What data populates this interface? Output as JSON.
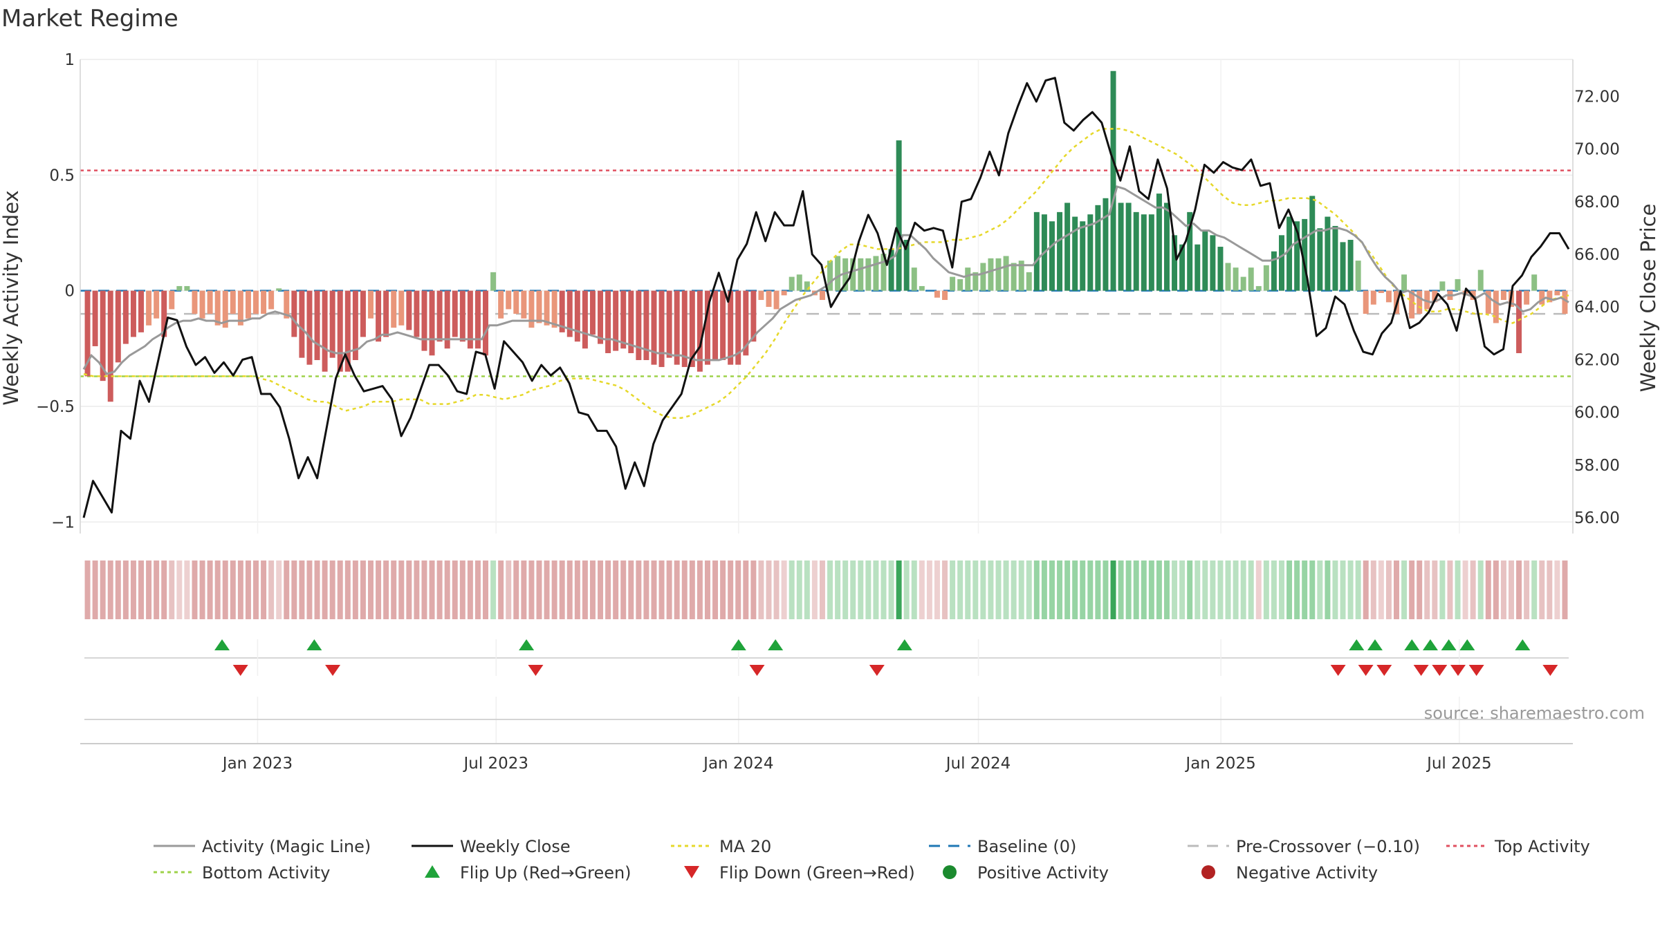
{
  "chart_data": {
    "type": "bar",
    "title": "Market Regime",
    "source": "source: sharemaestro.com",
    "y_left": {
      "label": "Weekly Activity Index",
      "ylim": [
        -1.05,
        1.0
      ],
      "ticks": [
        {
          "v": 1,
          "label": "1"
        },
        {
          "v": 0.5,
          "label": "0.5"
        },
        {
          "v": 0,
          "label": "0"
        },
        {
          "v": -0.5,
          "label": "−0.5"
        },
        {
          "v": -1,
          "label": "−1"
        }
      ]
    },
    "y_right": {
      "label": "Weekly Close Price",
      "ylim": [
        55.4,
        73.4
      ],
      "ticks": [
        "56.00",
        "58.00",
        "60.00",
        "62.00",
        "64.00",
        "66.00",
        "68.00",
        "70.00",
        "72.00"
      ]
    },
    "x_axis": {
      "start": "2022-08-22",
      "end": "2025-09-22",
      "ticks": [
        {
          "date": "2023-01-01",
          "label": "Jan 2023"
        },
        {
          "date": "2023-07-01",
          "label": "Jul 2023"
        },
        {
          "date": "2024-01-01",
          "label": "Jan 2024"
        },
        {
          "date": "2024-07-01",
          "label": "Jul 2024"
        },
        {
          "date": "2025-01-01",
          "label": "Jan 2025"
        },
        {
          "date": "2025-07-01",
          "label": "Jul 2025"
        }
      ]
    },
    "reference_lines": {
      "top_activity": 0.52,
      "bottom_activity": -0.37,
      "baseline": 0,
      "pre_crossover": -0.1
    },
    "colors": {
      "strong_pos": "#2e8b57",
      "weak_pos": "#8cc084",
      "strong_neg": "#cd5c5c",
      "weak_neg": "#e9967a",
      "close": "#111111",
      "magic": "#999999",
      "ma20": "#e6d82a",
      "baseline": "#1f77b4",
      "pre": "#bbbbbb",
      "top": "#e05060",
      "bottom": "#9ed24a",
      "flip_up": "#1fa33a",
      "flip_down": "#d62728",
      "pos_dot": "#1b8a2e",
      "neg_dot": "#b22222"
    },
    "activity": [
      -0.37,
      -0.24,
      -0.39,
      -0.48,
      -0.31,
      -0.23,
      -0.2,
      -0.18,
      -0.15,
      -0.12,
      -0.2,
      -0.08,
      0.02,
      0.02,
      -0.1,
      -0.12,
      -0.1,
      -0.15,
      -0.16,
      -0.1,
      -0.15,
      -0.12,
      -0.1,
      -0.1,
      -0.08,
      0.01,
      -0.12,
      -0.2,
      -0.29,
      -0.32,
      -0.3,
      -0.35,
      -0.29,
      -0.35,
      -0.35,
      -0.3,
      -0.2,
      -0.12,
      -0.22,
      -0.2,
      -0.16,
      -0.15,
      -0.17,
      -0.2,
      -0.26,
      -0.28,
      -0.22,
      -0.25,
      -0.2,
      -0.22,
      -0.25,
      -0.25,
      -0.28,
      0.08,
      -0.12,
      -0.08,
      -0.1,
      -0.12,
      -0.16,
      -0.14,
      -0.15,
      -0.16,
      -0.18,
      -0.2,
      -0.22,
      -0.25,
      -0.19,
      -0.23,
      -0.27,
      -0.26,
      -0.25,
      -0.27,
      -0.3,
      -0.3,
      -0.32,
      -0.33,
      -0.29,
      -0.32,
      -0.33,
      -0.33,
      -0.35,
      -0.32,
      -0.3,
      -0.3,
      -0.32,
      -0.32,
      -0.28,
      -0.22,
      -0.04,
      -0.07,
      -0.08,
      -0.02,
      0.06,
      0.07,
      0.04,
      -0.02,
      -0.04,
      0.13,
      0.15,
      0.14,
      0.14,
      0.14,
      0.14,
      0.15,
      0.16,
      0.18,
      0.65,
      0.22,
      0.1,
      0.02,
      0,
      -0.03,
      -0.04,
      0.06,
      0.05,
      0.1,
      0.08,
      0.12,
      0.14,
      0.14,
      0.15,
      0.12,
      0.13,
      0.08,
      0.34,
      0.33,
      0.3,
      0.34,
      0.38,
      0.32,
      0.3,
      0.33,
      0.37,
      0.4,
      0.95,
      0.38,
      0.38,
      0.34,
      0.33,
      0.33,
      0.42,
      0.38,
      0.24,
      0.2,
      0.34,
      0.2,
      0.26,
      0.24,
      0.19,
      0.12,
      0.1,
      0.06,
      0.1,
      0.02,
      0.11,
      0.17,
      0.24,
      0.32,
      0.3,
      0.31,
      0.41,
      0.27,
      0.32,
      0.28,
      0.21,
      0.22,
      0.13,
      -0.1,
      -0.06,
      -0.01,
      -0.05,
      -0.1,
      0.07,
      -0.12,
      -0.1,
      -0.08,
      -0.05,
      0.04,
      -0.04,
      0.05,
      -0.02,
      -0.04,
      0.09,
      -0.1,
      -0.14,
      -0.04,
      -0.07,
      -0.27,
      -0.06,
      0.07,
      -0.06,
      -0.05,
      -0.02,
      -0.1
    ],
    "magic_line": [
      -0.34,
      -0.28,
      -0.31,
      -0.36,
      -0.35,
      -0.31,
      -0.28,
      -0.26,
      -0.24,
      -0.21,
      -0.19,
      -0.16,
      -0.14,
      -0.13,
      -0.13,
      -0.12,
      -0.13,
      -0.13,
      -0.14,
      -0.13,
      -0.13,
      -0.13,
      -0.12,
      -0.12,
      -0.1,
      -0.09,
      -0.1,
      -0.11,
      -0.15,
      -0.18,
      -0.22,
      -0.24,
      -0.26,
      -0.27,
      -0.27,
      -0.26,
      -0.25,
      -0.22,
      -0.21,
      -0.19,
      -0.19,
      -0.18,
      -0.19,
      -0.2,
      -0.21,
      -0.21,
      -0.21,
      -0.21,
      -0.21,
      -0.21,
      -0.21,
      -0.21,
      -0.21,
      -0.15,
      -0.15,
      -0.14,
      -0.13,
      -0.13,
      -0.13,
      -0.13,
      -0.13,
      -0.14,
      -0.15,
      -0.16,
      -0.17,
      -0.18,
      -0.19,
      -0.2,
      -0.21,
      -0.21,
      -0.22,
      -0.23,
      -0.24,
      -0.25,
      -0.26,
      -0.27,
      -0.27,
      -0.28,
      -0.28,
      -0.29,
      -0.3,
      -0.3,
      -0.3,
      -0.3,
      -0.29,
      -0.28,
      -0.26,
      -0.22,
      -0.18,
      -0.15,
      -0.12,
      -0.08,
      -0.06,
      -0.04,
      -0.03,
      -0.02,
      0,
      0.02,
      0.05,
      0.07,
      0.08,
      0.09,
      0.1,
      0.11,
      0.12,
      0.13,
      0.15,
      0.24,
      0.24,
      0.21,
      0.18,
      0.14,
      0.11,
      0.08,
      0.07,
      0.06,
      0.07,
      0.07,
      0.08,
      0.09,
      0.1,
      0.11,
      0.11,
      0.11,
      0.11,
      0.15,
      0.18,
      0.21,
      0.23,
      0.25,
      0.27,
      0.28,
      0.29,
      0.31,
      0.33,
      0.45,
      0.44,
      0.42,
      0.4,
      0.38,
      0.36,
      0.36,
      0.34,
      0.31,
      0.28,
      0.29,
      0.26,
      0.26,
      0.24,
      0.23,
      0.21,
      0.19,
      0.17,
      0.15,
      0.13,
      0.13,
      0.14,
      0.16,
      0.2,
      0.22,
      0.24,
      0.26,
      0.26,
      0.27,
      0.27,
      0.26,
      0.24,
      0.21,
      0.15,
      0.1,
      0.06,
      0.03,
      -0.01,
      0,
      -0.02,
      -0.04,
      -0.05,
      -0.04,
      -0.02,
      -0.02,
      -0.01,
      -0.02,
      -0.03,
      -0.01,
      -0.04,
      -0.06,
      -0.05,
      -0.06,
      -0.09,
      -0.08,
      -0.05,
      -0.03,
      -0.04,
      -0.03,
      -0.05
    ],
    "close": [
      56.0,
      57.4,
      56.8,
      56.2,
      59.3,
      59.0,
      61.2,
      60.4,
      62.0,
      63.6,
      63.5,
      62.5,
      61.8,
      62.1,
      61.5,
      61.9,
      61.4,
      62.0,
      62.1,
      60.7,
      60.7,
      60.2,
      59.0,
      57.5,
      58.3,
      57.5,
      59.4,
      61.3,
      62.2,
      61.4,
      60.8,
      60.9,
      61.0,
      60.5,
      59.1,
      59.8,
      60.8,
      61.8,
      61.8,
      61.4,
      60.8,
      60.7,
      62.3,
      62.2,
      60.9,
      62.7,
      62.3,
      61.9,
      61.2,
      61.8,
      61.4,
      61.7,
      61.1,
      60.0,
      59.9,
      59.3,
      59.3,
      58.7,
      57.1,
      58.1,
      57.2,
      58.8,
      59.7,
      60.2,
      60.7,
      62.0,
      62.5,
      64.2,
      65.3,
      64.2,
      65.8,
      66.4,
      67.6,
      66.5,
      67.6,
      67.1,
      67.1,
      68.4,
      66.0,
      65.6,
      64.0,
      64.6,
      65.1,
      66.5,
      67.5,
      66.8,
      65.6,
      67.0,
      66.2,
      67.2,
      66.9,
      67.0,
      66.9,
      65.5,
      68.0,
      68.1,
      68.9,
      69.9,
      69.0,
      70.6,
      71.6,
      72.5,
      71.8,
      72.6,
      72.7,
      71.0,
      70.7,
      71.1,
      71.4,
      71.0,
      69.8,
      68.8,
      70.1,
      68.4,
      68.1,
      69.6,
      68.5,
      65.8,
      66.5,
      67.7,
      69.4,
      69.1,
      69.5,
      69.3,
      69.2,
      69.6,
      68.6,
      68.7,
      67.0,
      67.7,
      66.8,
      65.1,
      62.9,
      63.2,
      64.4,
      64.1,
      63.1,
      62.3,
      62.2,
      63.0,
      63.4,
      64.6,
      63.2,
      63.4,
      63.8,
      64.5,
      64.1,
      63.1,
      64.7,
      64.3,
      62.5,
      62.2,
      62.4,
      64.8,
      65.2,
      65.9,
      66.3,
      66.8,
      66.8,
      66.2
    ],
    "ma20": [
      -0.36,
      -0.37,
      -0.37,
      -0.37,
      -0.37,
      -0.37,
      -0.37,
      -0.37,
      -0.37,
      -0.37,
      -0.37,
      -0.37,
      -0.37,
      -0.37,
      -0.37,
      -0.37,
      -0.37,
      -0.37,
      -0.37,
      -0.38,
      -0.39,
      -0.41,
      -0.43,
      -0.45,
      -0.47,
      -0.48,
      -0.48,
      -0.5,
      -0.52,
      -0.51,
      -0.5,
      -0.48,
      -0.48,
      -0.48,
      -0.47,
      -0.47,
      -0.47,
      -0.49,
      -0.49,
      -0.49,
      -0.48,
      -0.47,
      -0.45,
      -0.45,
      -0.46,
      -0.47,
      -0.46,
      -0.45,
      -0.43,
      -0.42,
      -0.41,
      -0.39,
      -0.38,
      -0.38,
      -0.38,
      -0.39,
      -0.4,
      -0.41,
      -0.43,
      -0.46,
      -0.49,
      -0.52,
      -0.54,
      -0.55,
      -0.55,
      -0.54,
      -0.52,
      -0.5,
      -0.48,
      -0.45,
      -0.41,
      -0.37,
      -0.32,
      -0.27,
      -0.21,
      -0.14,
      -0.08,
      -0.02,
      0.03,
      0.08,
      0.13,
      0.17,
      0.2,
      0.2,
      0.19,
      0.18,
      0.18,
      0.18,
      0.19,
      0.2,
      0.21,
      0.21,
      0.21,
      0.22,
      0.22,
      0.23,
      0.24,
      0.26,
      0.28,
      0.31,
      0.35,
      0.39,
      0.43,
      0.48,
      0.53,
      0.58,
      0.62,
      0.65,
      0.68,
      0.7,
      0.7,
      0.7,
      0.69,
      0.67,
      0.65,
      0.63,
      0.61,
      0.59,
      0.56,
      0.53,
      0.49,
      0.45,
      0.41,
      0.38,
      0.37,
      0.37,
      0.38,
      0.39,
      0.39,
      0.4,
      0.4,
      0.4,
      0.39,
      0.36,
      0.33,
      0.29,
      0.25,
      0.2,
      0.15,
      0.09,
      0.03,
      -0.01,
      -0.04,
      -0.07,
      -0.09,
      -0.09,
      -0.08,
      -0.08,
      -0.09,
      -0.1,
      -0.1,
      -0.11,
      -0.13,
      -0.14,
      -0.12,
      -0.1,
      -0.07,
      -0.04,
      -0.03,
      -0.02
    ],
    "flip_up_dates": [
      "2022-12-05",
      "2023-02-13",
      "2023-07-24",
      "2024-01-01",
      "2024-01-29",
      "2024-05-06",
      "2025-04-14",
      "2025-04-28",
      "2025-05-26",
      "2025-06-09",
      "2025-06-23",
      "2025-07-07",
      "2025-08-18"
    ],
    "flip_down_dates": [
      "2022-12-19",
      "2023-02-27",
      "2023-07-31",
      "2024-01-15",
      "2024-04-15",
      "2025-03-31",
      "2025-04-21",
      "2025-05-05",
      "2025-06-02",
      "2025-06-16",
      "2025-06-30",
      "2025-07-14",
      "2025-09-08"
    ],
    "legend": [
      {
        "key": "magic",
        "label": "Activity (Magic Line)"
      },
      {
        "key": "close",
        "label": "Weekly Close"
      },
      {
        "key": "ma20",
        "label": "MA 20"
      },
      {
        "key": "baseline",
        "label": "Baseline (0)"
      },
      {
        "key": "pre",
        "label": "Pre-Crossover (−0.10)"
      },
      {
        "key": "top",
        "label": "Top Activity"
      },
      {
        "key": "bottom",
        "label": "Bottom Activity"
      },
      {
        "key": "flip_up",
        "label": "Flip Up (Red→Green)"
      },
      {
        "key": "flip_down",
        "label": "Flip Down (Green→Red)"
      },
      {
        "key": "pos_dot",
        "label": "Positive Activity"
      },
      {
        "key": "neg_dot",
        "label": "Negative Activity"
      }
    ]
  }
}
